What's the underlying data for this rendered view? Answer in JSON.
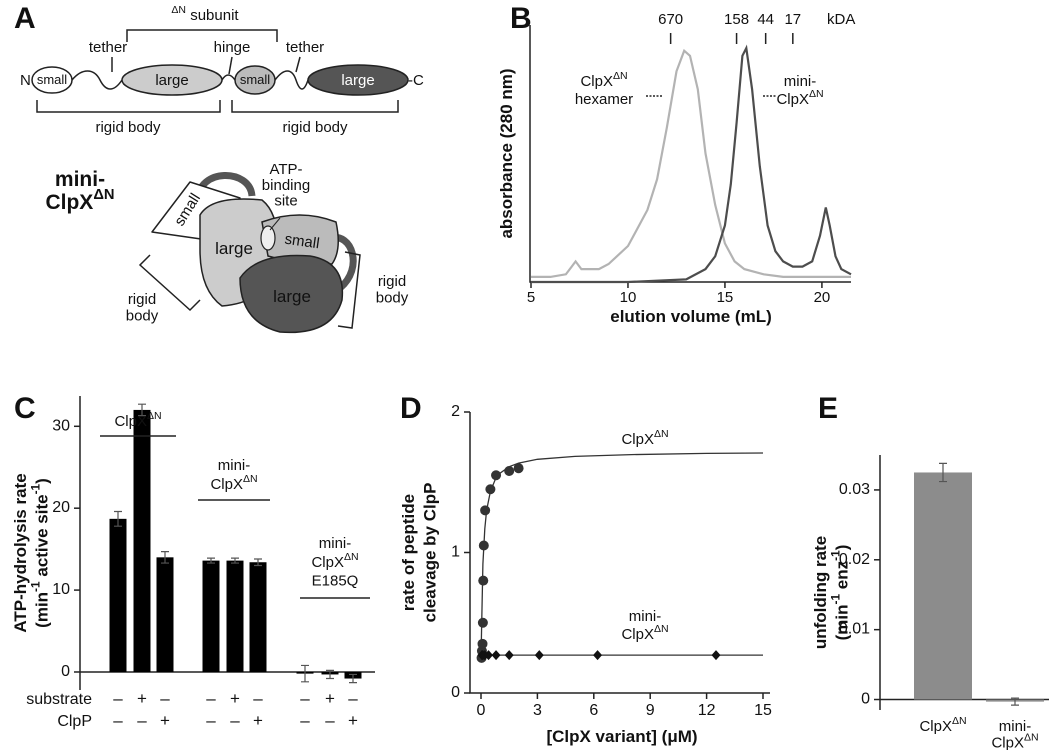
{
  "panels": [
    "A",
    "B",
    "C",
    "D",
    "E"
  ],
  "diagram": {
    "subunit_label": "ΔN subunit",
    "callouts": [
      "tether",
      "hinge",
      "tether"
    ],
    "terminals": [
      "N-",
      "-C"
    ],
    "domains": [
      "small",
      "large",
      "small",
      "large"
    ],
    "rigid_bodies": [
      "rigid body",
      "rigid body"
    ],
    "model_title": [
      "mini-",
      "ClpXΔN"
    ],
    "site_label": [
      "ATP-",
      "binding",
      "site"
    ],
    "model_domains": [
      "small",
      "large",
      "small",
      "large"
    ],
    "model_rigid_bodies": [
      [
        "rigid",
        "body"
      ],
      [
        "rigid",
        "body"
      ]
    ]
  },
  "chart_data": [
    {
      "type": "line",
      "xlabel": "elution volume (mL)",
      "ylabel": "absorbance (280 nm)",
      "xlim": [
        5,
        21.5
      ],
      "xticks": [
        5,
        10,
        15,
        20
      ],
      "ylim": [
        0,
        1
      ],
      "mw_markers": {
        "x": [
          12.2,
          15.6,
          17.1,
          18.5
        ],
        "mw": [
          670,
          158,
          44,
          17
        ],
        "unit": "kDA"
      },
      "series": [
        {
          "name": [
            "ClpXΔN",
            "hexamer"
          ],
          "color": "#b3b3b3",
          "x": [
            5,
            6,
            6.8,
            7.1,
            7.3,
            7.6,
            8.5,
            9,
            10,
            11,
            11.5,
            12,
            12.5,
            12.9,
            13.2,
            13.6,
            14,
            14.5,
            15,
            15.5,
            16,
            17,
            18,
            19,
            20,
            21.5
          ],
          "values": [
            0.02,
            0.02,
            0.03,
            0.06,
            0.08,
            0.05,
            0.05,
            0.07,
            0.14,
            0.28,
            0.4,
            0.6,
            0.82,
            0.9,
            0.88,
            0.75,
            0.5,
            0.3,
            0.15,
            0.08,
            0.05,
            0.03,
            0.02,
            0.02,
            0.02,
            0.02
          ]
        },
        {
          "name": [
            "mini-",
            "ClpXΔN"
          ],
          "color": "#4d4d4d",
          "x": [
            5,
            10,
            13,
            14,
            14.5,
            15,
            15.3,
            15.6,
            15.9,
            16.1,
            16.4,
            16.8,
            17.2,
            17.6,
            18,
            18.5,
            19,
            19.5,
            19.9,
            20.2,
            20.4,
            20.7,
            21,
            21.5
          ],
          "values": [
            0,
            0,
            0.01,
            0.05,
            0.1,
            0.22,
            0.38,
            0.62,
            0.88,
            0.91,
            0.75,
            0.45,
            0.22,
            0.12,
            0.08,
            0.06,
            0.06,
            0.08,
            0.18,
            0.29,
            0.22,
            0.1,
            0.05,
            0.03
          ]
        }
      ]
    },
    {
      "type": "bar",
      "ylabel": [
        "ATP-hydrolysis rate",
        "(min-1 active site-1)"
      ],
      "ylim": [
        -2.2,
        33.7
      ],
      "yticks": [
        0,
        10,
        20,
        30
      ],
      "color": "#000000",
      "groups": [
        [
          "ClpXΔN"
        ],
        [
          "mini-",
          "ClpXΔN"
        ],
        [
          "mini-",
          "ClpXΔN",
          "E185Q"
        ]
      ],
      "values": [
        18.7,
        32,
        14,
        13.6,
        13.6,
        13.4,
        -0.2,
        -0.3,
        -0.8
      ],
      "errors": [
        0.9,
        0.7,
        0.7,
        0.3,
        0.3,
        0.4,
        1,
        0.5,
        0.5
      ],
      "conditions": [
        {
          "name": "substrate",
          "signs": [
            "–",
            "+",
            "–",
            "–",
            "+",
            "–",
            "–",
            "+",
            "–"
          ]
        },
        {
          "name": "ClpP",
          "signs": [
            "–",
            "–",
            "+",
            "–",
            "–",
            "+",
            "–",
            "–",
            "+"
          ]
        }
      ]
    },
    {
      "type": "scatter",
      "xlabel": "[ClpX variant] (μM)",
      "ylabel": [
        "rate of peptide",
        "cleavage by ClpP"
      ],
      "xlim": [
        0,
        15
      ],
      "xticks": [
        0,
        3,
        6,
        9,
        12,
        15
      ],
      "ylim": [
        0,
        2
      ],
      "yticks": [
        0,
        1,
        2
      ],
      "series": [
        {
          "name": [
            "ClpXΔN"
          ],
          "marker": "circle",
          "color": "#333333",
          "x": [
            0.03,
            0.05,
            0.08,
            0.1,
            0.12,
            0.15,
            0.22,
            0.5,
            0.8,
            1.5,
            2
          ],
          "values": [
            0.25,
            0.3,
            0.35,
            0.5,
            0.8,
            1.05,
            1.3,
            1.45,
            1.55,
            1.58,
            1.6
          ],
          "fit_x": [
            0,
            0.1,
            0.2,
            0.3,
            0.5,
            0.75,
            1,
            1.5,
            2,
            3,
            5,
            8,
            12,
            15
          ],
          "fit_values": [
            0.25,
            0.918,
            1.169,
            1.3,
            1.435,
            1.517,
            1.563,
            1.611,
            1.636,
            1.663,
            1.684,
            1.697,
            1.705,
            1.708
          ]
        },
        {
          "name": [
            "mini-",
            "ClpXΔN"
          ],
          "marker": "diamond",
          "color": "#111111",
          "x": [
            0.05,
            0.1,
            0.2,
            0.4,
            0.8,
            1.5,
            3.1,
            6.2,
            12.5
          ],
          "values": [
            0.27,
            0.27,
            0.27,
            0.27,
            0.27,
            0.27,
            0.27,
            0.27,
            0.27
          ],
          "fit_x": [
            0,
            15
          ],
          "fit_values": [
            0.27,
            0.27
          ]
        }
      ]
    },
    {
      "type": "bar",
      "ylabel": [
        "unfolding rate",
        "(min-1 enz-1)"
      ],
      "ylim": [
        -0.0015,
        0.035
      ],
      "yticks": [
        0,
        0.01,
        0.02,
        0.03
      ],
      "color": "#8c8c8c",
      "categories": [
        [
          "ClpXΔN"
        ],
        [
          "mini-",
          "ClpXΔN"
        ]
      ],
      "values": [
        0.0325,
        -0.0003
      ],
      "errors": [
        0.0013,
        0.0005
      ]
    }
  ]
}
